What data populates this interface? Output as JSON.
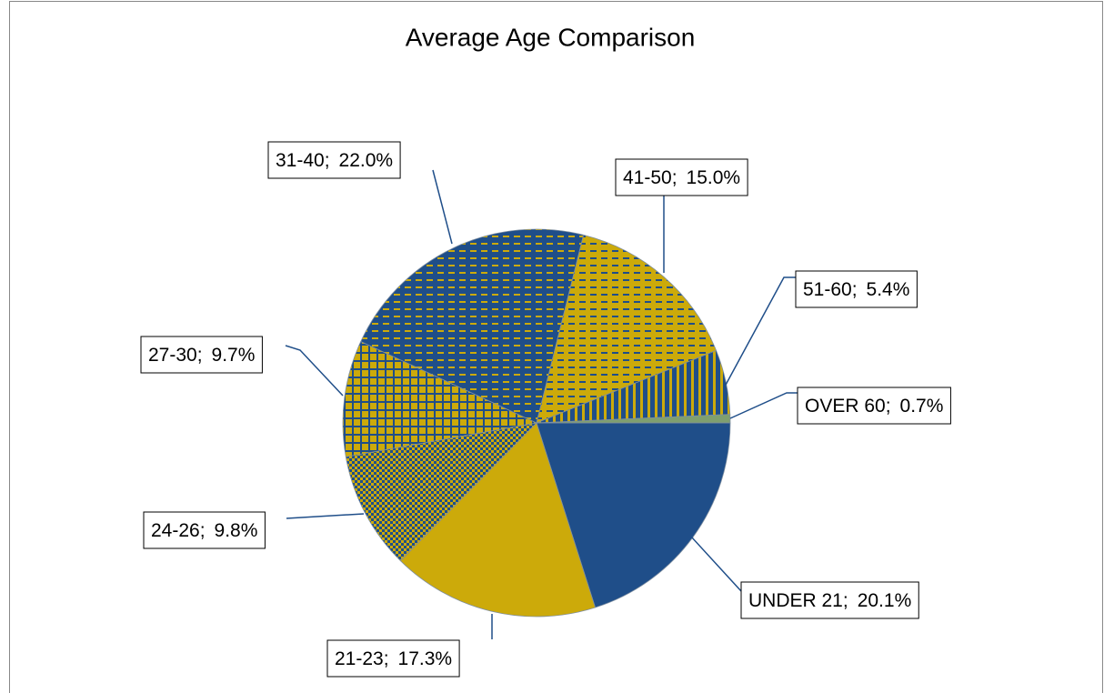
{
  "chart_data": {
    "type": "pie",
    "title": "Average Age Comparison",
    "categories": [
      "UNDER 21;",
      "21-23;",
      "24-26;",
      "27-30;",
      "31-40;",
      "41-50;",
      "51-60;",
      "OVER 60;"
    ],
    "values": [
      20.1,
      17.3,
      9.8,
      9.7,
      22.0,
      15.0,
      5.4,
      0.7
    ],
    "value_labels": [
      "20.1%",
      "17.3%",
      "9.8%",
      "9.7%",
      "22.0%",
      "15.0%",
      "5.4%",
      "0.7%"
    ],
    "colors": [
      "#1f4e89",
      "#ccaa0a",
      "#ccaa0a",
      "#ccaa0a",
      "#1f4e89",
      "#ccaa0a",
      "#1f4e89",
      "#7f9f6f"
    ],
    "pattern_colors": [
      null,
      null,
      "#1f4e89",
      "#1f4e89",
      "#ccaa0a",
      "#1f4e89",
      "#ccaa0a",
      null
    ],
    "patterns": [
      "solid",
      "solid",
      "checker",
      "grid",
      "dashed",
      "dashed",
      "vertical",
      "solid"
    ]
  }
}
